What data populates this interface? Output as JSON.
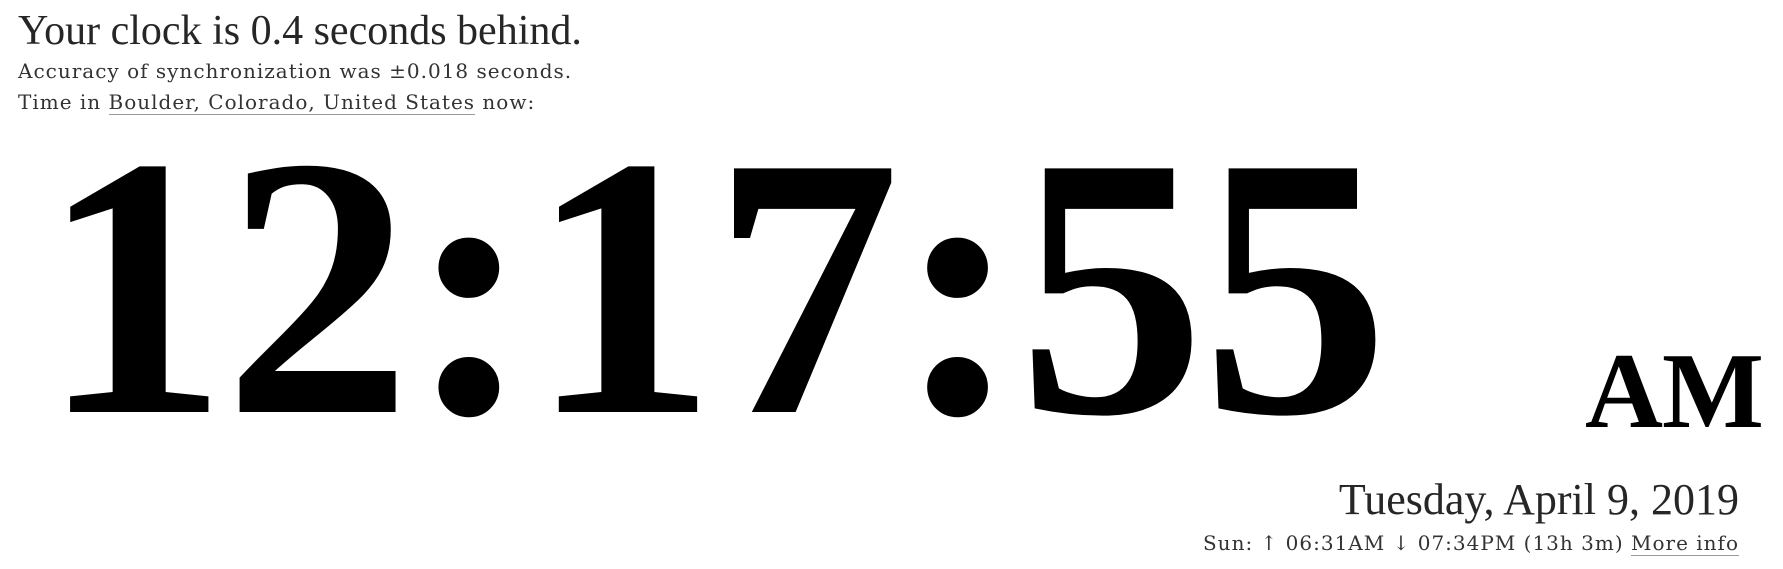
{
  "header": {
    "status": "Your clock is 0.4 seconds behind.",
    "accuracy": "Accuracy of synchronization was ±0.018 seconds.",
    "location_prefix": "Time in ",
    "location_link": "Boulder, Colorado, United States",
    "location_suffix": " now:"
  },
  "clock": {
    "time": "12:17:55",
    "ampm": "AM"
  },
  "date": {
    "text": "Tuesday, April 9, 2019"
  },
  "sun": {
    "prefix": "Sun: ",
    "rise_arrow": "↑",
    "sunrise": " 06:31AM ",
    "set_arrow": "↓",
    "sunset": " 07:34PM ",
    "duration": "(13h 3m)",
    "more_info": "More info"
  },
  "colors": {
    "text": "#222222",
    "clock": "#000000",
    "background": "#ffffff"
  }
}
